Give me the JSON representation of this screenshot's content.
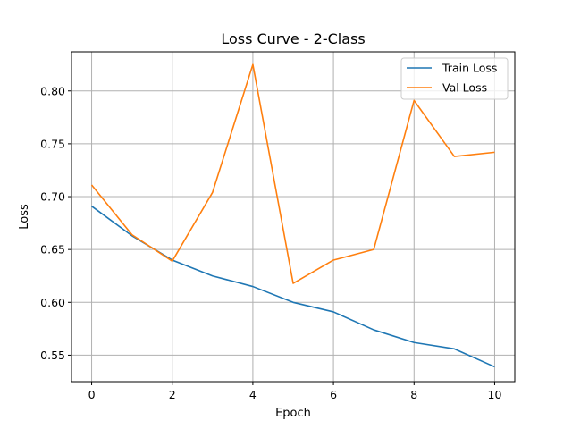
{
  "chart_data": {
    "type": "line",
    "title": "Loss Curve - 2-Class",
    "xlabel": "Epoch",
    "ylabel": "Loss",
    "x": [
      0,
      1,
      2,
      3,
      4,
      5,
      6,
      7,
      8,
      9,
      10
    ],
    "xlim": [
      -0.5,
      10.5
    ],
    "ylim": [
      0.525,
      0.837
    ],
    "xticks": [
      0,
      2,
      4,
      6,
      8,
      10
    ],
    "yticks": [
      0.55,
      0.6,
      0.65,
      0.7,
      0.75,
      0.8
    ],
    "grid": true,
    "legend_position": "top-right",
    "series": [
      {
        "name": "Train Loss",
        "color": "#1f77b4",
        "values": [
          0.691,
          0.663,
          0.64,
          0.625,
          0.615,
          0.6,
          0.591,
          0.574,
          0.562,
          0.556,
          0.539
        ]
      },
      {
        "name": "Val Loss",
        "color": "#ff7f0e",
        "values": [
          0.711,
          0.664,
          0.639,
          0.704,
          0.825,
          0.618,
          0.64,
          0.65,
          0.791,
          0.738,
          0.742
        ]
      }
    ]
  }
}
